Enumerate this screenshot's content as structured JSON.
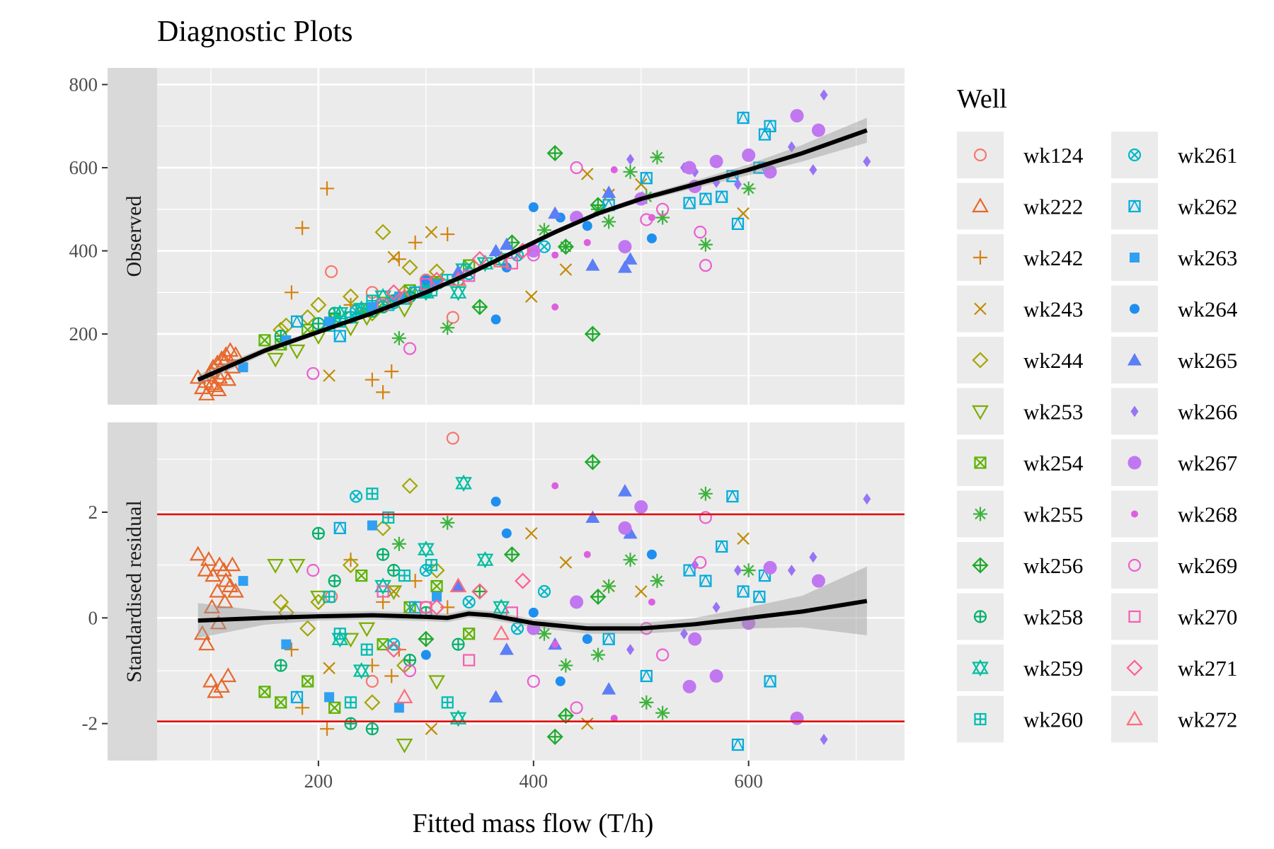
{
  "chart_data": {
    "type": "scatter",
    "title": "Diagnostic Plots",
    "xlabel": "Fitted mass flow (T/h)",
    "xlim": [
      50,
      745
    ],
    "x_ticks": [
      200,
      400,
      600
    ],
    "x_tick_labels": [
      "200",
      "400",
      "600"
    ],
    "grid": true,
    "legend": {
      "title": "Well",
      "placement": "right",
      "columns": 2
    },
    "panels": [
      {
        "strip_label": "Observed",
        "ylim": [
          30,
          840
        ],
        "y_ticks": [
          200,
          400,
          600,
          800
        ],
        "y_tick_labels": [
          "200",
          "400",
          "600",
          "800"
        ],
        "smooth": {
          "x": [
            88,
            150,
            200,
            250,
            300,
            340,
            380,
            420,
            460,
            500,
            550,
            600,
            650,
            710
          ],
          "y": [
            90,
            160,
            205,
            250,
            300,
            345,
            395,
            445,
            490,
            525,
            560,
            595,
            635,
            690
          ],
          "band_half_width": [
            12,
            8,
            6,
            5,
            5,
            5,
            5,
            6,
            6,
            7,
            9,
            13,
            20,
            30
          ]
        },
        "hlines": []
      },
      {
        "strip_label": "Standardised residual",
        "ylim": [
          -2.7,
          3.7
        ],
        "y_ticks": [
          -2,
          0,
          2
        ],
        "y_tick_labels": [
          "-2",
          "0",
          "2"
        ],
        "smooth": {
          "x": [
            88,
            150,
            200,
            250,
            300,
            320,
            340,
            360,
            400,
            450,
            500,
            550,
            600,
            650,
            710
          ],
          "y": [
            -0.05,
            0.0,
            0.03,
            0.05,
            0.02,
            0.0,
            0.08,
            0.05,
            -0.1,
            -0.2,
            -0.2,
            -0.12,
            0.0,
            0.12,
            0.32
          ],
          "band_half_width": [
            0.33,
            0.13,
            0.08,
            0.08,
            0.08,
            0.08,
            0.08,
            0.08,
            0.08,
            0.1,
            0.1,
            0.12,
            0.2,
            0.3,
            0.65
          ]
        },
        "hlines": [
          {
            "y": 1.96,
            "color": "#e0100f"
          },
          {
            "y": -1.96,
            "color": "#e0100f"
          }
        ]
      }
    ],
    "series": [
      {
        "name": "wk124",
        "color": "#F8766D",
        "shape": "circle-open",
        "x": [
          325,
          212,
          300,
          250
        ],
        "observed": [
          240,
          350,
          330,
          300
        ],
        "residual": [
          3.4,
          0.4,
          0.2,
          -1.2
        ]
      },
      {
        "name": "wk222",
        "color": "#E7672B",
        "shape": "triangle-open",
        "x": [
          88,
          92,
          95,
          98,
          100,
          102,
          104,
          106,
          108,
          110,
          112,
          114,
          116,
          118,
          120,
          123,
          96,
          101,
          107,
          113
        ],
        "observed": [
          95,
          70,
          85,
          100,
          110,
          120,
          75,
          130,
          95,
          140,
          105,
          150,
          90,
          160,
          120,
          150,
          55,
          80,
          65,
          135
        ],
        "residual": [
          1.2,
          -0.3,
          0.9,
          1.1,
          -1.2,
          0.8,
          -1.4,
          0.5,
          1.0,
          -1.3,
          0.9,
          0.7,
          -1.1,
          0.6,
          1.0,
          0.5,
          -0.5,
          0.2,
          -0.1,
          0.3
        ]
      },
      {
        "name": "wk242",
        "color": "#D5820F",
        "shape": "plus",
        "x": [
          185,
          208,
          175,
          268,
          320,
          275,
          290,
          230,
          250,
          260
        ],
        "observed": [
          455,
          550,
          300,
          110,
          440,
          380,
          420,
          270,
          90,
          60
        ],
        "residual": [
          -1.7,
          -2.1,
          -0.6,
          -1.1,
          0.2,
          -0.6,
          0.7,
          1.1,
          -0.9,
          0.3
        ]
      },
      {
        "name": "wk243",
        "color": "#C08B00",
        "shape": "x",
        "x": [
          398,
          595,
          430,
          450,
          305,
          210,
          270,
          470,
          500
        ],
        "observed": [
          290,
          490,
          355,
          585,
          445,
          100,
          385,
          535,
          560
        ],
        "residual": [
          1.6,
          1.5,
          1.05,
          -2.0,
          -2.1,
          -0.95,
          0.5,
          0.6,
          0.5
        ]
      },
      {
        "name": "wk244",
        "color": "#A3A500",
        "shape": "diamond-open",
        "x": [
          260,
          200,
          230,
          285,
          165,
          250,
          190,
          310,
          280,
          170
        ],
        "observed": [
          445,
          270,
          290,
          360,
          210,
          250,
          240,
          350,
          300,
          220
        ],
        "residual": [
          1.7,
          0.3,
          1.0,
          2.5,
          0.3,
          -1.6,
          -0.2,
          0.9,
          -0.9,
          0.1
        ]
      },
      {
        "name": "wk253",
        "color": "#7CAE00",
        "shape": "triangle-down-open",
        "x": [
          180,
          200,
          230,
          280,
          310,
          160,
          245,
          270
        ],
        "observed": [
          160,
          195,
          215,
          260,
          320,
          140,
          240,
          280
        ],
        "residual": [
          1.0,
          0.4,
          -0.4,
          -2.4,
          -1.2,
          1.0,
          -0.2,
          0.5
        ]
      },
      {
        "name": "wk254",
        "color": "#5BB300",
        "shape": "square-x",
        "x": [
          150,
          165,
          190,
          215,
          240,
          260,
          285,
          310,
          340
        ],
        "observed": [
          185,
          175,
          210,
          235,
          260,
          275,
          305,
          325,
          365
        ],
        "residual": [
          -1.4,
          -1.6,
          -1.2,
          -1.7,
          0.8,
          -0.5,
          0.2,
          0.6,
          -0.3
        ]
      },
      {
        "name": "wk255",
        "color": "#3DB33D",
        "shape": "asterisk",
        "x": [
          515,
          560,
          490,
          520,
          600,
          460,
          410,
          320,
          275,
          430,
          470,
          505
        ],
        "observed": [
          625,
          415,
          590,
          480,
          550,
          500,
          450,
          215,
          190,
          410,
          470,
          530
        ],
        "residual": [
          0.7,
          2.35,
          1.1,
          -1.8,
          0.9,
          -0.7,
          -0.3,
          1.8,
          1.4,
          -0.9,
          0.6,
          -1.6
        ]
      },
      {
        "name": "wk256",
        "color": "#1DAA2A",
        "shape": "diamond-plus",
        "x": [
          420,
          455,
          350,
          380,
          460,
          300,
          430
        ],
        "observed": [
          635,
          200,
          265,
          420,
          510,
          305,
          410
        ],
        "residual": [
          -2.25,
          2.95,
          0.5,
          1.2,
          0.4,
          -0.4,
          -1.85
        ]
      },
      {
        "name": "wk258",
        "color": "#00B06B",
        "shape": "circle-plus",
        "x": [
          165,
          200,
          230,
          250,
          270,
          300,
          330,
          215,
          260,
          285
        ],
        "observed": [
          195,
          225,
          240,
          255,
          280,
          300,
          330,
          250,
          265,
          290
        ],
        "residual": [
          -0.9,
          1.6,
          -2.0,
          -2.1,
          0.9,
          0.1,
          -0.5,
          0.7,
          1.2,
          -0.8
        ]
      },
      {
        "name": "wk259",
        "color": "#00BFA0",
        "shape": "star-of-david",
        "x": [
          335,
          355,
          330,
          260,
          220,
          300,
          370,
          240
        ],
        "observed": [
          355,
          370,
          300,
          290,
          250,
          300,
          380,
          260
        ],
        "residual": [
          2.55,
          1.1,
          -1.9,
          0.6,
          -0.4,
          1.3,
          0.2,
          -1.0
        ]
      },
      {
        "name": "wk260",
        "color": "#00BCB2",
        "shape": "square-plus",
        "x": [
          250,
          305,
          230,
          280,
          220,
          265,
          320,
          245,
          210
        ],
        "observed": [
          280,
          305,
          240,
          285,
          230,
          270,
          330,
          260,
          220
        ],
        "residual": [
          2.35,
          1.0,
          -1.6,
          0.8,
          -0.3,
          1.9,
          -1.6,
          -0.6,
          0.4
        ]
      },
      {
        "name": "wk261",
        "color": "#00B8C8",
        "shape": "circle-x",
        "x": [
          235,
          270,
          300,
          340,
          385,
          410
        ],
        "observed": [
          255,
          275,
          310,
          345,
          390,
          410
        ],
        "residual": [
          2.3,
          -0.5,
          0.9,
          0.3,
          -0.2,
          0.5
        ]
      },
      {
        "name": "wk262",
        "color": "#00ACDC",
        "shape": "square-triangle",
        "x": [
          595,
          615,
          620,
          560,
          575,
          590,
          505,
          545,
          470,
          585,
          610,
          180,
          220,
          290
        ],
        "observed": [
          720,
          680,
          700,
          525,
          530,
          465,
          575,
          515,
          510,
          580,
          600,
          230,
          195,
          300
        ],
        "residual": [
          0.5,
          0.8,
          -1.2,
          0.7,
          1.35,
          -2.4,
          -1.1,
          0.9,
          -0.4,
          2.3,
          0.4,
          -1.5,
          1.7,
          0.2
        ]
      },
      {
        "name": "wk263",
        "color": "#2FA0F2",
        "shape": "square",
        "x": [
          130,
          170,
          250,
          210,
          275,
          310
        ],
        "observed": [
          120,
          185,
          265,
          230,
          290,
          320
        ],
        "residual": [
          0.7,
          -0.5,
          1.75,
          -1.5,
          -1.7,
          0.4
        ]
      },
      {
        "name": "wk264",
        "color": "#1E8FF0",
        "shape": "circle",
        "x": [
          365,
          400,
          375,
          510,
          425,
          300,
          450
        ],
        "observed": [
          235,
          505,
          360,
          430,
          480,
          330,
          460
        ],
        "residual": [
          2.2,
          0.1,
          1.6,
          1.2,
          -1.2,
          -0.7,
          -0.4
        ]
      },
      {
        "name": "wk265",
        "color": "#5C7EF6",
        "shape": "triangle",
        "x": [
          485,
          490,
          455,
          375,
          420,
          365,
          470,
          330
        ],
        "observed": [
          360,
          380,
          365,
          415,
          490,
          400,
          540,
          350
        ],
        "residual": [
          2.4,
          1.6,
          1.9,
          -0.6,
          -0.5,
          -1.5,
          -1.35,
          0.6
        ]
      },
      {
        "name": "wk266",
        "color": "#9874F5",
        "shape": "diamond",
        "x": [
          710,
          670,
          660,
          640,
          590,
          570,
          490,
          540,
          550
        ],
        "observed": [
          615,
          775,
          595,
          650,
          560,
          565,
          620,
          600,
          590
        ],
        "residual": [
          2.25,
          -2.3,
          1.15,
          0.9,
          0.9,
          0.2,
          -0.6,
          -0.3,
          1.0
        ]
      },
      {
        "name": "wk267",
        "color": "#C077F0",
        "shape": "circle-large",
        "x": [
          645,
          665,
          620,
          570,
          545,
          500,
          485,
          440,
          400,
          550,
          600
        ],
        "observed": [
          725,
          690,
          590,
          615,
          600,
          525,
          410,
          480,
          400,
          555,
          630
        ],
        "residual": [
          -1.9,
          0.7,
          0.95,
          -1.1,
          -1.3,
          2.1,
          1.7,
          0.3,
          -0.2,
          -0.4,
          -0.1
        ]
      },
      {
        "name": "wk268",
        "color": "#DD5FE0",
        "shape": "circle-small",
        "x": [
          420,
          475,
          450,
          420,
          510
        ],
        "observed": [
          265,
          595,
          420,
          390,
          480
        ],
        "residual": [
          2.5,
          -1.9,
          1.2,
          -0.5,
          0.3
        ]
      },
      {
        "name": "wk269",
        "color": "#EC5FD0",
        "shape": "circle-open",
        "x": [
          555,
          560,
          440,
          195,
          285,
          400,
          520,
          505
        ],
        "observed": [
          445,
          365,
          600,
          105,
          165,
          390,
          500,
          475
        ],
        "residual": [
          1.05,
          1.9,
          -1.7,
          0.9,
          -1.0,
          -1.2,
          -0.7,
          -0.2
        ]
      },
      {
        "name": "wk270",
        "color": "#F55EB0",
        "shape": "square-open",
        "x": [
          300,
          340,
          260,
          380
        ],
        "observed": [
          320,
          340,
          270,
          370
        ],
        "residual": [
          0.2,
          -0.8,
          0.5,
          0.1
        ]
      },
      {
        "name": "wk271",
        "color": "#FF5E90",
        "shape": "diamond-open",
        "x": [
          350,
          310,
          270,
          390
        ],
        "observed": [
          380,
          330,
          300,
          400
        ],
        "residual": [
          0.5,
          0.2,
          -0.6,
          0.7
        ]
      },
      {
        "name": "wk272",
        "color": "#FF6C7C",
        "shape": "triangle-open",
        "x": [
          280,
          330,
          370
        ],
        "observed": [
          290,
          330,
          375
        ],
        "residual": [
          -1.5,
          0.6,
          -0.3
        ]
      }
    ]
  }
}
